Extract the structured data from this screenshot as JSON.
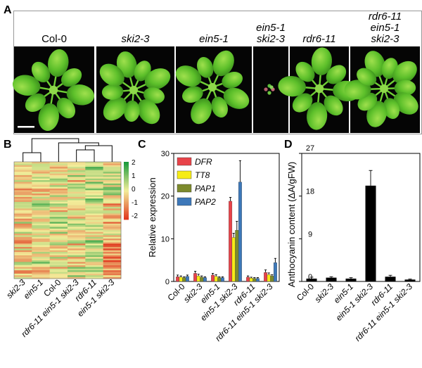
{
  "panels": {
    "a": "A",
    "b": "B",
    "c": "C",
    "d": "D"
  },
  "panel_a": {
    "genotypes": [
      {
        "label": "Col-0",
        "italic": false
      },
      {
        "label": "ski2-3",
        "italic": true
      },
      {
        "label": "ein5-1",
        "italic": true
      },
      {
        "label": "ein5-1\nski2-3",
        "italic": true
      },
      {
        "label": "rdr6-11",
        "italic": true
      },
      {
        "label": "rdr6-11\nein5-1\nski2-3",
        "italic": true
      }
    ]
  },
  "panel_b": {
    "legend_ticks": [
      "2",
      "1",
      "0",
      "-1",
      "-2"
    ],
    "colors": {
      "high": "#1a9a3c",
      "mid": "#f2ee9a",
      "low": "#e0381f"
    },
    "columns": [
      "ski2-3",
      "ein5-1",
      "Col-0",
      "rdr6-11 ein5-1 ski2-3",
      "rdr6-11",
      "ein5-1 ski2-3"
    ]
  },
  "chart_data": [
    {
      "type": "bar",
      "ylabel": "Relative expression",
      "ylim": [
        0,
        30
      ],
      "yticks": [
        "0",
        "10",
        "20",
        "30"
      ],
      "categories": [
        "Col-0",
        "ski2-3",
        "ein5-1",
        "ein5-1 ski2-3",
        "rdr6-11",
        "rdr6-11 ein5-1 ski2-3"
      ],
      "series": [
        {
          "name": "DFR",
          "color": "#e8434a",
          "values": [
            1.1,
            1.9,
            1.5,
            18.8,
            1.0,
            2.1
          ],
          "errors": [
            0.4,
            0.5,
            0.4,
            0.9,
            0.3,
            0.6
          ]
        },
        {
          "name": "TT8",
          "color": "#f6ec16",
          "values": [
            1.0,
            1.3,
            1.2,
            10.3,
            0.8,
            1.6
          ],
          "errors": [
            0.3,
            0.4,
            0.4,
            1.0,
            0.2,
            0.4
          ]
        },
        {
          "name": "PAP1",
          "color": "#7c8a2c",
          "values": [
            0.9,
            1.0,
            0.9,
            12.0,
            0.7,
            1.3
          ],
          "errors": [
            0.2,
            0.3,
            0.2,
            2.1,
            0.2,
            0.3
          ]
        },
        {
          "name": "PAP2",
          "color": "#3d78b9",
          "values": [
            1.2,
            0.9,
            0.9,
            23.3,
            0.7,
            4.4
          ],
          "errors": [
            0.3,
            0.2,
            0.2,
            5.0,
            0.2,
            1.0
          ]
        }
      ]
    },
    {
      "type": "bar",
      "ylabel": "Anthocyanin content (ΔA/gFW)",
      "ylim": [
        0,
        27
      ],
      "yticks": [
        "0",
        "9",
        "18",
        "27"
      ],
      "categories": [
        "Col-0",
        "ski2-3",
        "ein5-1",
        "ein5-1 ski2-3",
        "rdr6-11",
        "rdr6-11 ein5-1 ski2-3"
      ],
      "values": [
        0.6,
        0.8,
        0.6,
        20.2,
        1.0,
        0.4
      ],
      "errors": [
        0.3,
        0.2,
        0.2,
        3.2,
        0.3,
        0.1
      ],
      "color": "#000000"
    }
  ]
}
